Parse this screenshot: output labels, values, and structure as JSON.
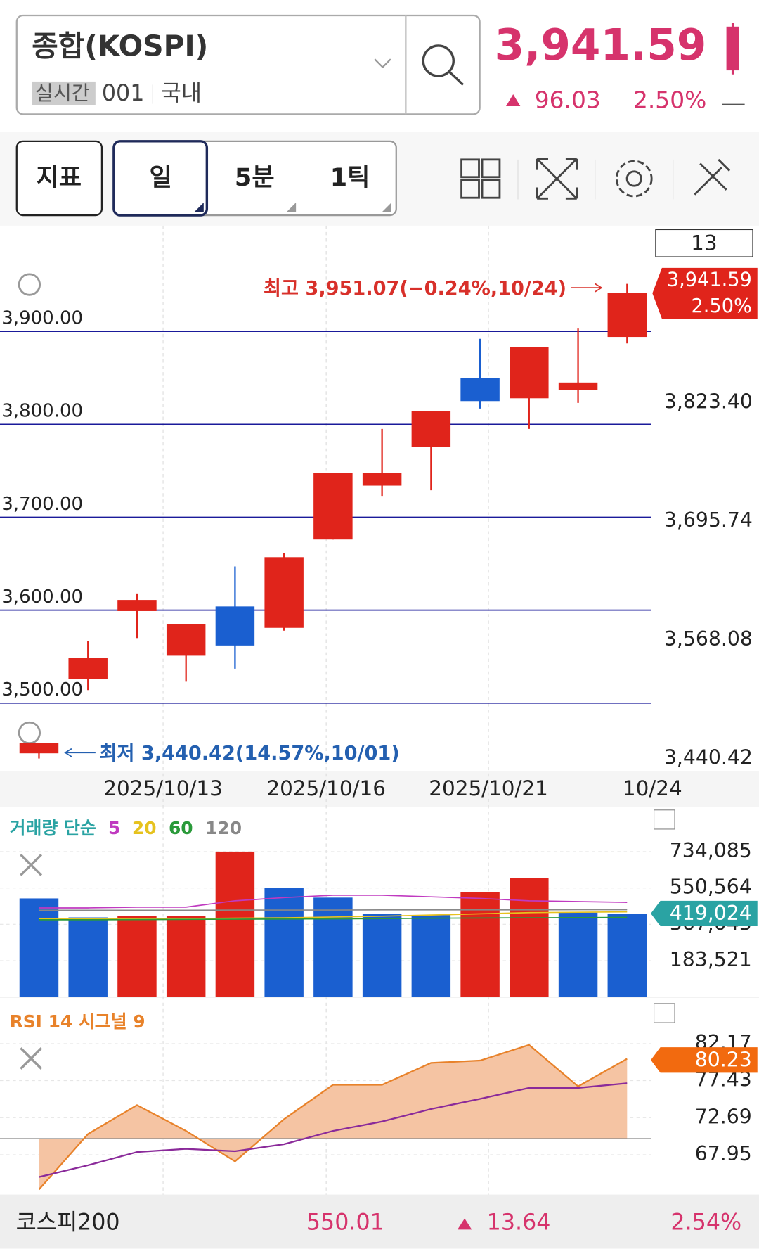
{
  "header": {
    "title": "종합(KOSPI)",
    "badge": "실시간",
    "code": "001",
    "market": "국내",
    "price": "3,941.59",
    "change": "96.03",
    "change_pct": "2.50%"
  },
  "toolbar": {
    "buttons": [
      "지표",
      "일",
      "5분",
      "1틱"
    ],
    "count": "13"
  },
  "price_chart": {
    "type": "candlestick",
    "up_color": "#e0241b",
    "down_color": "#1a5fd0",
    "grid_color": "#1a1a9a",
    "open": [
      3446,
      3526,
      3599,
      3551,
      3604,
      3581,
      3676,
      3734,
      3776,
      3850,
      3828,
      3837,
      3894
    ],
    "high": [
      3457,
      3567,
      3618,
      3585,
      3647,
      3661,
      3748,
      3795,
      3814,
      3892,
      3883,
      3903,
      3951.07
    ],
    "low": [
      3440.42,
      3514,
      3570,
      3523,
      3537,
      3578,
      3676,
      3723,
      3729,
      3817,
      3795,
      3823,
      3887
    ],
    "close": [
      3457,
      3549,
      3611,
      3585,
      3562,
      3657,
      3748,
      3748,
      3814,
      3825,
      3883,
      3845,
      3941.59
    ],
    "ylim": [
      3427,
      4012
    ],
    "yticks": [
      {
        "value": 3500,
        "label": "3,500.00"
      },
      {
        "value": 3600,
        "label": "3,600.00"
      },
      {
        "value": 3700,
        "label": "3,700.00"
      },
      {
        "value": 3800,
        "label": "3,800.00"
      },
      {
        "value": 3900,
        "label": "3,900.00"
      }
    ],
    "right_ticks": [
      {
        "value": 3440.42,
        "label": "3,440.42"
      },
      {
        "value": 3568.08,
        "label": "3,568.08"
      },
      {
        "value": 3695.74,
        "label": "3,695.74"
      },
      {
        "value": 3823.4,
        "label": "3,823.40"
      }
    ],
    "x_labels": [
      "2025/10/13",
      "2025/10/16",
      "2025/10/21",
      "10/24"
    ],
    "high_note": "최고 3,951.07(−0.24%,10/24)",
    "low_note": "최저 3,440.42(14.57%,10/01)",
    "last_tag": {
      "price": "3,941.59",
      "change": "2.50%"
    }
  },
  "volume_chart": {
    "type": "bar",
    "title": "거래량 단순",
    "values": [
      498000,
      402000,
      410000,
      410000,
      734085,
      550000,
      502000,
      418000,
      414000,
      530000,
      602000,
      426000,
      419024
    ],
    "colors": [
      "#1a5fd0",
      "#1a5fd0",
      "#e0241b",
      "#e0241b",
      "#e0241b",
      "#1a5fd0",
      "#1a5fd0",
      "#1a5fd0",
      "#1a5fd0",
      "#e0241b",
      "#e0241b",
      "#1a5fd0",
      "#1a5fd0"
    ],
    "ylim": [
      0,
      952000
    ],
    "yticks": [
      {
        "value": 183521,
        "label": "183,521"
      },
      {
        "value": 367043,
        "label": "367,043"
      },
      {
        "value": 550564,
        "label": "550,564"
      },
      {
        "value": 734085,
        "label": "734,085"
      }
    ],
    "last_label": "419,024",
    "series": [
      {
        "name": "5",
        "color": "#c03ac0",
        "values": [
          450000,
          450000,
          454000,
          454000,
          486000,
          502000,
          514000,
          514000,
          506000,
          498000,
          486000,
          482000,
          478000
        ]
      },
      {
        "name": "20",
        "color": "#e6c21e",
        "values": [
          394000,
          394000,
          396000,
          396000,
          398000,
          400000,
          404000,
          408000,
          414000,
          420000,
          426000,
          428000,
          430000
        ]
      },
      {
        "name": "60",
        "color": "#2a9a3a",
        "values": [
          390000,
          390000,
          391000,
          392000,
          393000,
          394000,
          395000,
          396000,
          398000,
          399000,
          400000,
          401000,
          402000
        ]
      },
      {
        "name": "120",
        "color": "#888888",
        "values": [
          438000,
          438000,
          438000,
          438000,
          439000,
          439000,
          439000,
          440000,
          440000,
          440000,
          440000,
          441000,
          441000
        ]
      }
    ]
  },
  "rsi_chart": {
    "type": "line",
    "title": "RSI 14 시그널 9",
    "ylim": [
      63.06,
      87.1
    ],
    "yticks": [
      67.95,
      72.69,
      77.43,
      82.17
    ],
    "reference": 70,
    "series": [
      {
        "name": "RSI",
        "color": "#e8822a",
        "fill": "#f5c4a3",
        "values": [
          63.5,
          70.6,
          74.3,
          71.0,
          67.1,
          72.5,
          76.9,
          76.9,
          79.7,
          80.0,
          82.0,
          76.7,
          80.23
        ]
      },
      {
        "name": "시그널",
        "color": "#8a2a9a",
        "values": [
          65.1,
          66.6,
          68.3,
          68.7,
          68.4,
          69.3,
          71.0,
          72.2,
          73.8,
          75.1,
          76.5,
          76.5,
          77.1
        ]
      }
    ]
  },
  "footer": {
    "name": "코스피200",
    "price": "550.01",
    "change": "13.64",
    "change_pct": "2.54%"
  }
}
